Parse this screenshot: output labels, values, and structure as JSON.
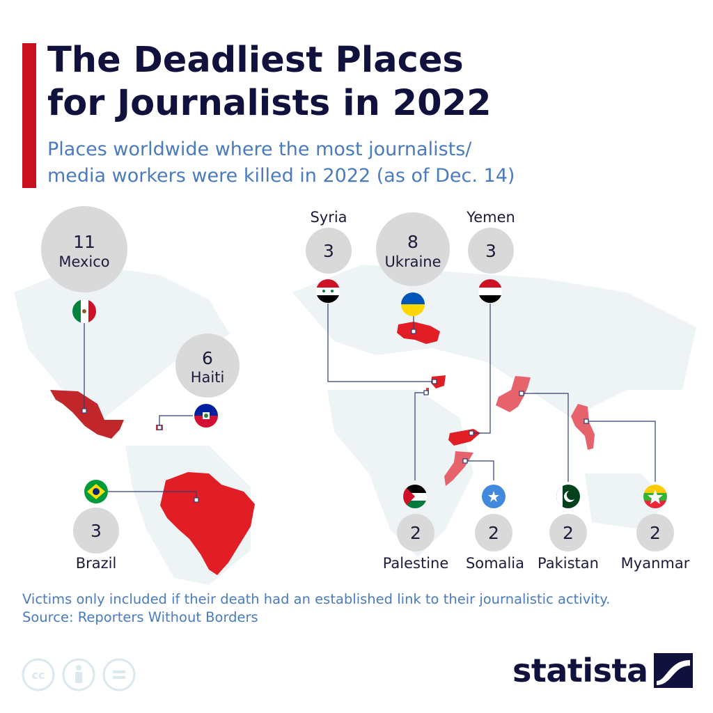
{
  "header": {
    "title_line1": "The Deadliest Places",
    "title_line2": "for Journalists in 2022",
    "subtitle_line1": "Places worldwide where the most journalists/",
    "subtitle_line2": "media workers were killed in 2022 (as of Dec. 14)"
  },
  "colors": {
    "accent": "#c8101e",
    "title": "#10123d",
    "subtitle": "#4a7bbd",
    "bubble": "#d9d9d9",
    "highlight_country": "#e23b3b"
  },
  "places": [
    {
      "country": "Mexico",
      "killed": "11"
    },
    {
      "country": "Ukraine",
      "killed": "8"
    },
    {
      "country": "Haiti",
      "killed": "6"
    },
    {
      "country": "Syria",
      "killed": "3"
    },
    {
      "country": "Yemen",
      "killed": "3"
    },
    {
      "country": "Brazil",
      "killed": "3"
    },
    {
      "country": "Palestine",
      "killed": "2"
    },
    {
      "country": "Somalia",
      "killed": "2"
    },
    {
      "country": "Pakistan",
      "killed": "2"
    },
    {
      "country": "Myanmar",
      "killed": "2"
    }
  ],
  "footer": {
    "note": "Victims only included if their death had an established link to their journalistic activity.",
    "source": "Source: Reporters Without Borders",
    "brand": "statista",
    "license_icons": [
      "cc-icon",
      "attribution-icon",
      "no-derivatives-icon"
    ]
  }
}
